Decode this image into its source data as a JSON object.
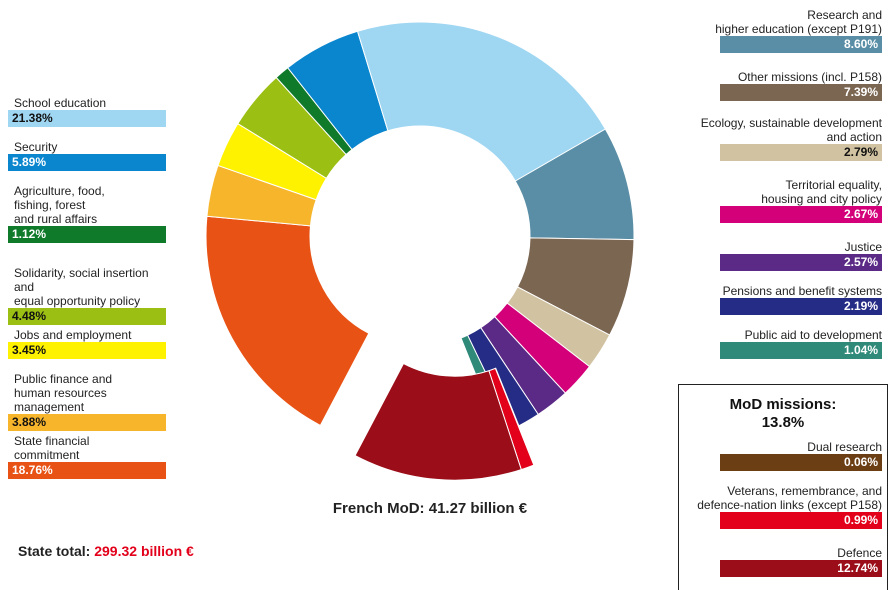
{
  "chart_data": {
    "type": "donut",
    "title": "",
    "center_label": "French MoD: 41.27 billion €",
    "state_total": {
      "label": "State total:",
      "value": "299.32 billion €",
      "value_color": "#e2001a"
    },
    "mod_group": {
      "title": "MoD missions:",
      "subtitle": "13.8%"
    },
    "slices": [
      {
        "label": "Research and\nhigher education (except P191)",
        "value": 8.6,
        "value_text": "8.60%",
        "color": "#5a8ea6",
        "text_color": "#ffffff"
      },
      {
        "label": "Other missions (incl. P158)",
        "value": 7.39,
        "value_text": "7.39%",
        "color": "#7b6652",
        "text_color": "#ffffff"
      },
      {
        "label": "Ecology, sustainable development\nand action",
        "value": 2.79,
        "value_text": "2.79%",
        "color": "#d1c3a1",
        "text_color": "#111111"
      },
      {
        "label": "Territorial equality,\nhousing and city policy",
        "value": 2.67,
        "value_text": "2.67%",
        "color": "#d4007a",
        "text_color": "#ffffff"
      },
      {
        "label": "Justice",
        "value": 2.57,
        "value_text": "2.57%",
        "color": "#5b2a86",
        "text_color": "#ffffff"
      },
      {
        "label": "Pensions and benefit systems",
        "value": 2.19,
        "value_text": "2.19%",
        "color": "#252c86",
        "text_color": "#ffffff"
      },
      {
        "label": "Public aid to development",
        "value": 1.04,
        "value_text": "1.04%",
        "color": "#2f8a7a",
        "text_color": "#ffffff"
      },
      {
        "label": "Dual research",
        "value": 0.06,
        "value_text": "0.06%",
        "color": "#6b3e14",
        "text_color": "#ffffff",
        "exploded": true
      },
      {
        "label": "Veterans, remembrance, and\ndefence-nation links (except P158)",
        "value": 0.99,
        "value_text": "0.99%",
        "color": "#e2001a",
        "text_color": "#ffffff",
        "exploded": true
      },
      {
        "label": "Defence",
        "value": 12.74,
        "value_text": "12.74%",
        "color": "#9b0d18",
        "text_color": "#ffffff",
        "exploded": true
      },
      {
        "label": "State financial\ncommitment",
        "value": 18.76,
        "value_text": "18.76%",
        "color": "#e85215",
        "text_color": "#ffffff"
      },
      {
        "label": "Public finance and\nhuman resources management",
        "value": 3.88,
        "value_text": "3.88%",
        "color": "#f7b52c",
        "text_color": "#111111"
      },
      {
        "label": "Jobs and employment",
        "value": 3.45,
        "value_text": "3.45%",
        "color": "#fff200",
        "text_color": "#111111"
      },
      {
        "label": "Solidarity, social insertion and\nequal opportunity policy",
        "value": 4.48,
        "value_text": "4.48%",
        "color": "#9bbf12",
        "text_color": "#111111"
      },
      {
        "label": "Agriculture, food,\nfishing, forest\nand rural affairs",
        "value": 1.12,
        "value_text": "1.12%",
        "color": "#0f7a2a",
        "text_color": "#ffffff"
      },
      {
        "label": "Security",
        "value": 5.89,
        "value_text": "5.89%",
        "color": "#0a86cf",
        "text_color": "#ffffff"
      },
      {
        "label": "School education",
        "value": 21.38,
        "value_text": "21.38%",
        "color": "#9fd6f2",
        "text_color": "#111111"
      }
    ]
  }
}
